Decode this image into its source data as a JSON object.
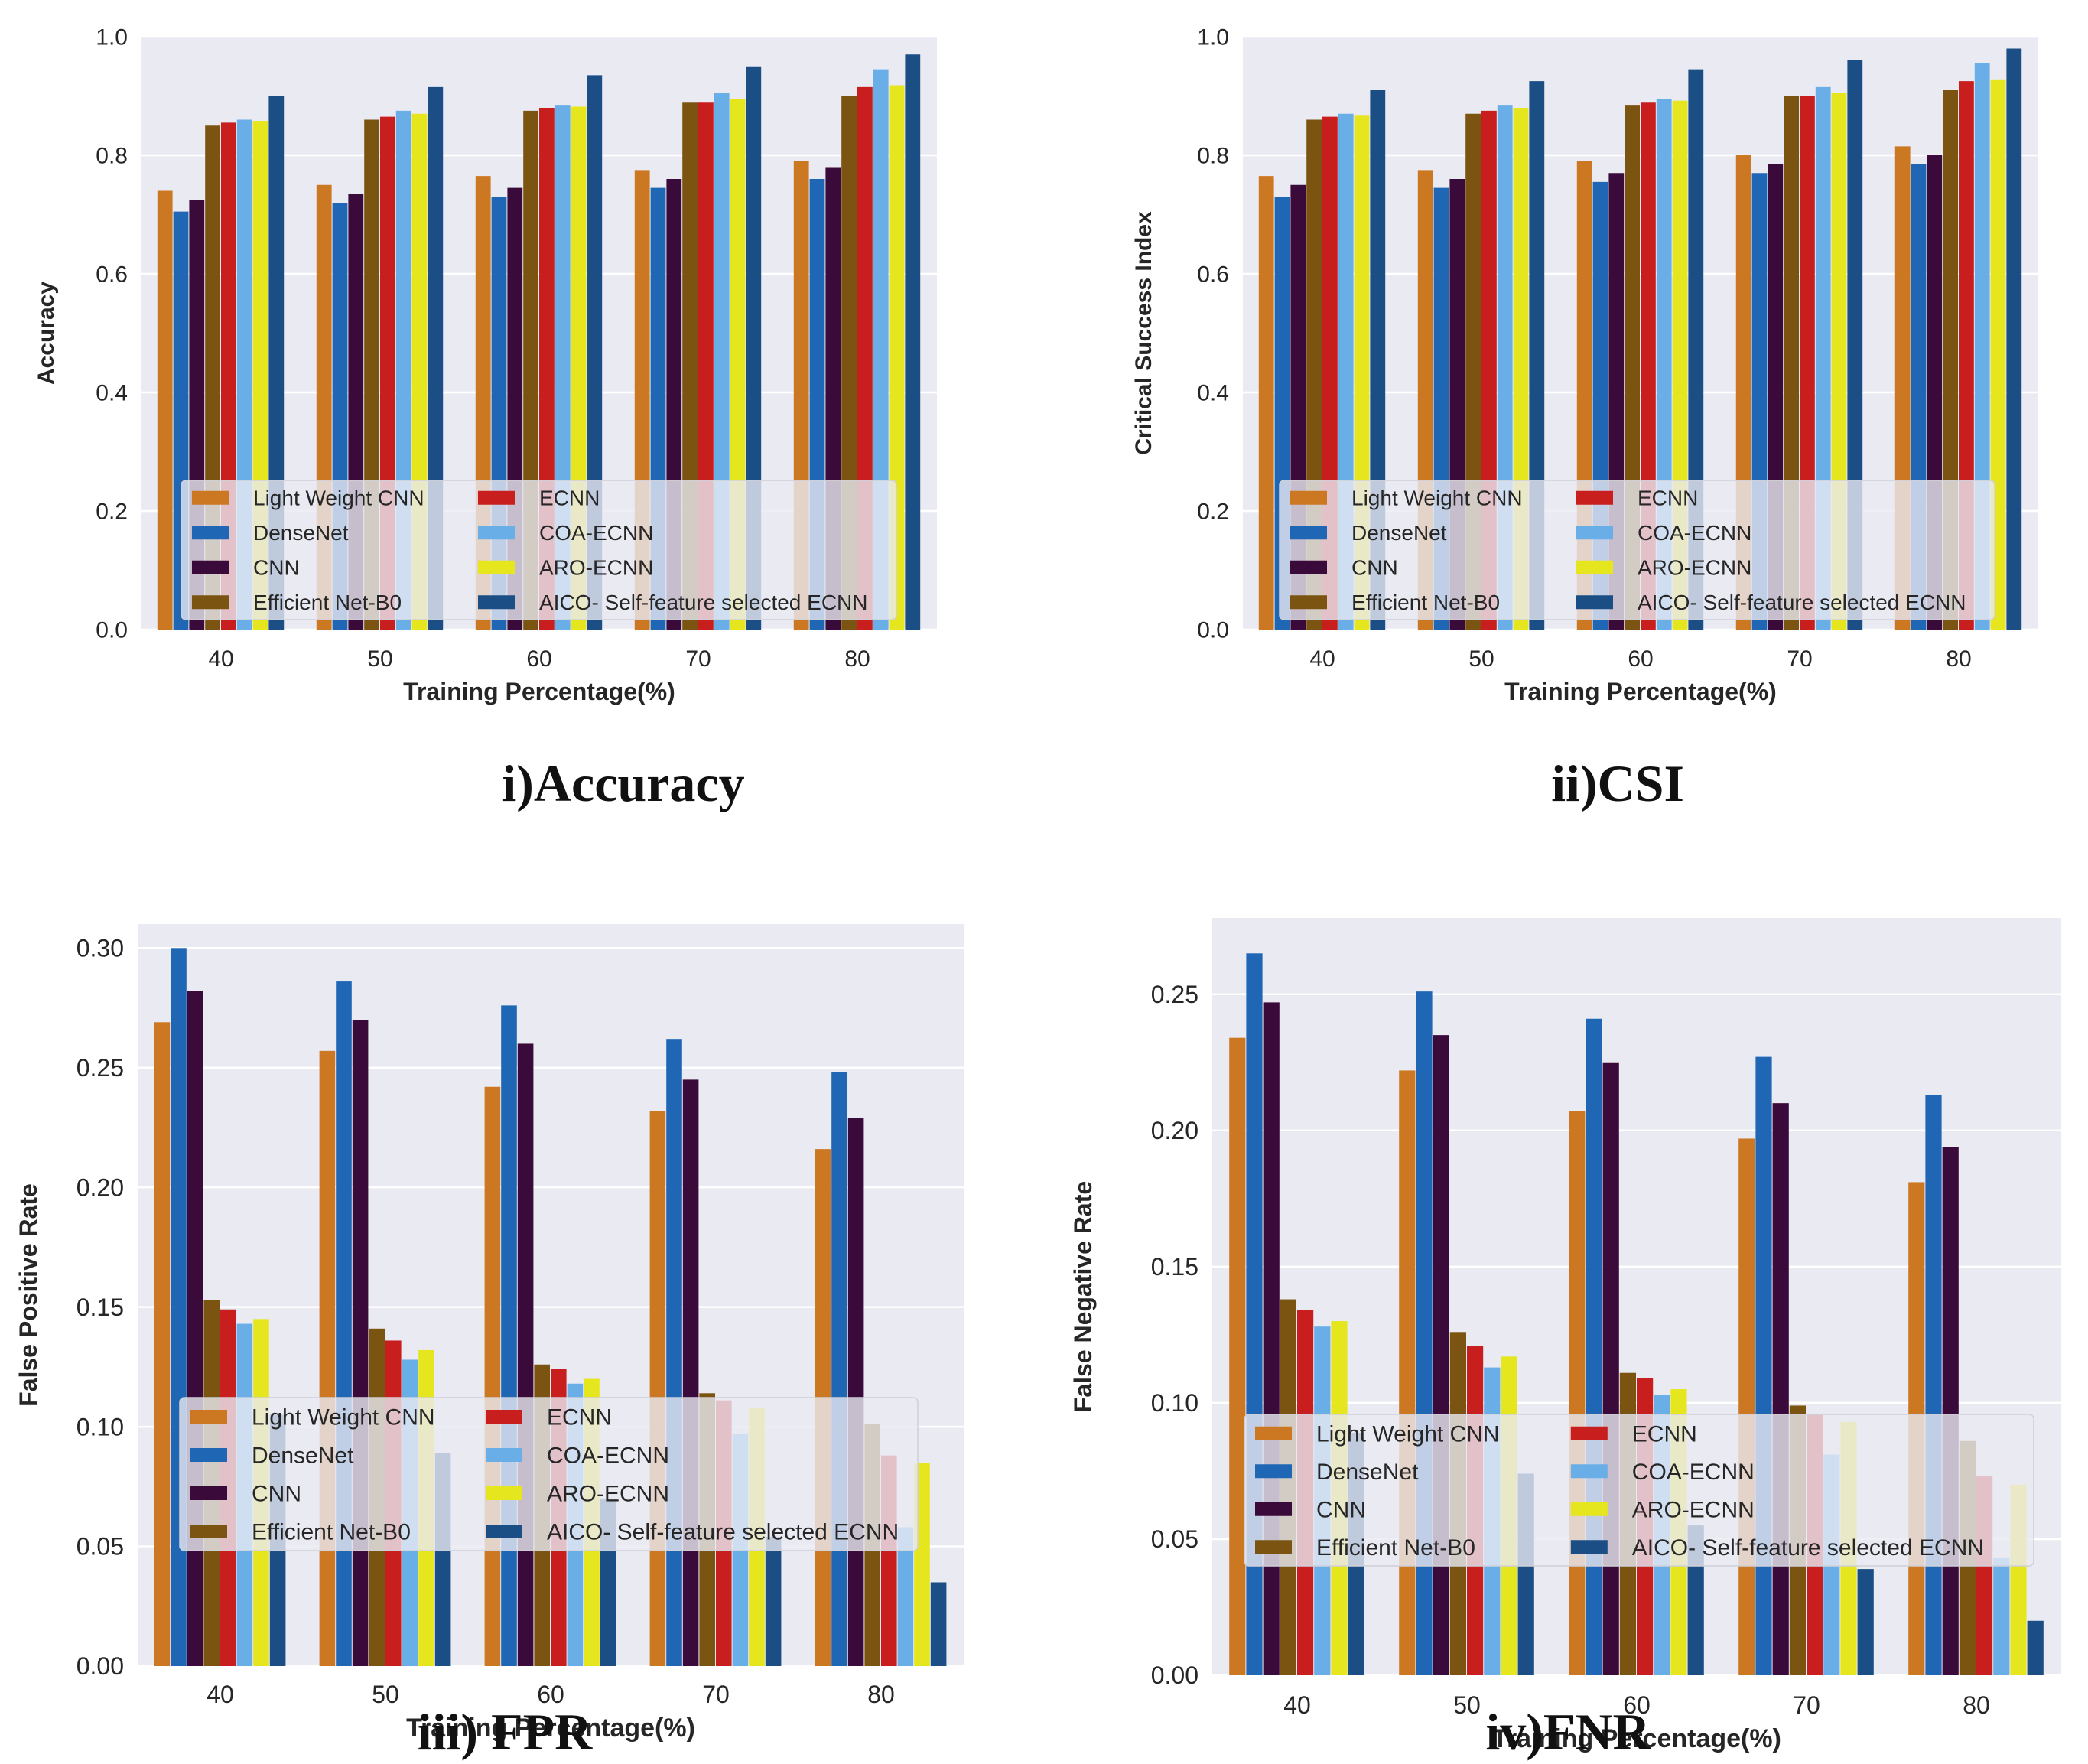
{
  "legend_colors": [
    "#CC7722",
    "#1F66B5",
    "#3A0A3A",
    "#7A5410",
    "#C81E1E",
    "#6AAEE8",
    "#E6E61E",
    "#1A4E85"
  ],
  "chart_data": [
    {
      "type": "bar",
      "caption": "i)Accuracy",
      "xlabel": "Training Percentage(%)",
      "ylabel": "Accuracy",
      "categories": [
        "40",
        "50",
        "60",
        "70",
        "80"
      ],
      "ylim": [
        0,
        1.0
      ],
      "yticks": [
        "0.0",
        "0.2",
        "0.4",
        "0.6",
        "0.8",
        "1.0"
      ],
      "legend_position": "lower center",
      "grid": true,
      "series": [
        {
          "name": "Light Weight CNN",
          "values": [
            0.74,
            0.75,
            0.765,
            0.775,
            0.79
          ]
        },
        {
          "name": "DenseNet",
          "values": [
            0.705,
            0.72,
            0.73,
            0.745,
            0.76
          ]
        },
        {
          "name": "CNN",
          "values": [
            0.725,
            0.735,
            0.745,
            0.76,
            0.78
          ]
        },
        {
          "name": "Efficient Net-B0",
          "values": [
            0.85,
            0.86,
            0.875,
            0.89,
            0.9
          ]
        },
        {
          "name": "ECNN",
          "values": [
            0.855,
            0.865,
            0.88,
            0.89,
            0.915
          ]
        },
        {
          "name": "COA-ECNN",
          "values": [
            0.86,
            0.875,
            0.885,
            0.905,
            0.945
          ]
        },
        {
          "name": "ARO-ECNN",
          "values": [
            0.858,
            0.87,
            0.882,
            0.895,
            0.918
          ]
        },
        {
          "name": "AICO- Self-feature selected ECNN",
          "values": [
            0.9,
            0.915,
            0.935,
            0.95,
            0.97
          ]
        }
      ]
    },
    {
      "type": "bar",
      "caption": "ii)CSI",
      "xlabel": "Training Percentage(%)",
      "ylabel": "Critical Success Index",
      "categories": [
        "40",
        "50",
        "60",
        "70",
        "80"
      ],
      "ylim": [
        0,
        1.0
      ],
      "yticks": [
        "0.0",
        "0.2",
        "0.4",
        "0.6",
        "0.8",
        "1.0"
      ],
      "legend_position": "lower center",
      "grid": true,
      "series": [
        {
          "name": "Light Weight CNN",
          "values": [
            0.765,
            0.775,
            0.79,
            0.8,
            0.815
          ]
        },
        {
          "name": "DenseNet",
          "values": [
            0.73,
            0.745,
            0.755,
            0.77,
            0.785
          ]
        },
        {
          "name": "CNN",
          "values": [
            0.75,
            0.76,
            0.77,
            0.785,
            0.8
          ]
        },
        {
          "name": "Efficient Net-B0",
          "values": [
            0.86,
            0.87,
            0.885,
            0.9,
            0.91
          ]
        },
        {
          "name": "ECNN",
          "values": [
            0.865,
            0.875,
            0.89,
            0.9,
            0.925
          ]
        },
        {
          "name": "COA-ECNN",
          "values": [
            0.87,
            0.885,
            0.895,
            0.915,
            0.955
          ]
        },
        {
          "name": "ARO-ECNN",
          "values": [
            0.868,
            0.88,
            0.892,
            0.905,
            0.928
          ]
        },
        {
          "name": "AICO- Self-feature selected ECNN",
          "values": [
            0.91,
            0.925,
            0.945,
            0.96,
            0.98
          ]
        }
      ]
    },
    {
      "type": "bar",
      "caption": "iii) FPR",
      "xlabel": "Training Percentage(%)",
      "ylabel": "False Positive Rate",
      "categories": [
        "40",
        "50",
        "60",
        "70",
        "80"
      ],
      "ylim": [
        0,
        0.31
      ],
      "yticks": [
        "0.00",
        "0.05",
        "0.10",
        "0.15",
        "0.20",
        "0.25",
        "0.30"
      ],
      "legend_position": "lower center",
      "grid": true,
      "series": [
        {
          "name": "Light Weight CNN",
          "values": [
            0.269,
            0.257,
            0.242,
            0.232,
            0.216
          ]
        },
        {
          "name": "DenseNet",
          "values": [
            0.3,
            0.286,
            0.276,
            0.262,
            0.248
          ]
        },
        {
          "name": "CNN",
          "values": [
            0.282,
            0.27,
            0.26,
            0.245,
            0.229
          ]
        },
        {
          "name": "Efficient Net-B0",
          "values": [
            0.153,
            0.141,
            0.126,
            0.114,
            0.101
          ]
        },
        {
          "name": "ECNN",
          "values": [
            0.149,
            0.136,
            0.124,
            0.111,
            0.088
          ]
        },
        {
          "name": "COA-ECNN",
          "values": [
            0.143,
            0.128,
            0.118,
            0.097,
            0.058
          ]
        },
        {
          "name": "ARO-ECNN",
          "values": [
            0.145,
            0.132,
            0.12,
            0.108,
            0.085
          ]
        },
        {
          "name": "AICO- Self-feature selected ECNN",
          "values": [
            0.105,
            0.089,
            0.07,
            0.054,
            0.035
          ]
        }
      ]
    },
    {
      "type": "bar",
      "caption": "iv)FNR",
      "xlabel": "Training Percentage(%)",
      "ylabel": "False Negative Rate",
      "categories": [
        "40",
        "50",
        "60",
        "70",
        "80"
      ],
      "ylim": [
        0,
        0.278
      ],
      "yticks": [
        "0.00",
        "0.05",
        "0.10",
        "0.15",
        "0.20",
        "0.25"
      ],
      "legend_position": "lower center",
      "grid": true,
      "series": [
        {
          "name": "Light Weight CNN",
          "values": [
            0.234,
            0.222,
            0.207,
            0.197,
            0.181
          ]
        },
        {
          "name": "DenseNet",
          "values": [
            0.265,
            0.251,
            0.241,
            0.227,
            0.213
          ]
        },
        {
          "name": "CNN",
          "values": [
            0.247,
            0.235,
            0.225,
            0.21,
            0.194
          ]
        },
        {
          "name": "Efficient Net-B0",
          "values": [
            0.138,
            0.126,
            0.111,
            0.099,
            0.086
          ]
        },
        {
          "name": "ECNN",
          "values": [
            0.134,
            0.121,
            0.109,
            0.096,
            0.073
          ]
        },
        {
          "name": "COA-ECNN",
          "values": [
            0.128,
            0.113,
            0.103,
            0.081,
            0.043
          ]
        },
        {
          "name": "ARO-ECNN",
          "values": [
            0.13,
            0.117,
            0.105,
            0.093,
            0.07
          ]
        },
        {
          "name": "AICO- Self-feature selected ECNN",
          "values": [
            0.089,
            0.074,
            0.055,
            0.039,
            0.02
          ]
        }
      ]
    }
  ]
}
